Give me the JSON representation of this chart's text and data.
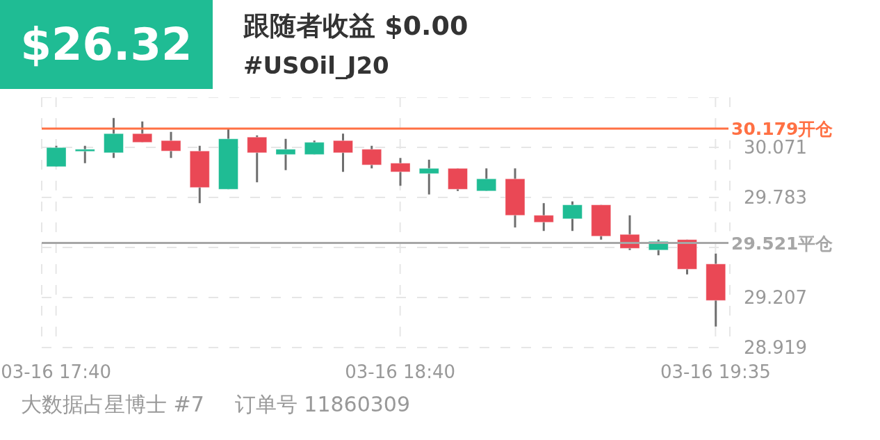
{
  "chart_data": {
    "type": "candlestick",
    "title": "跟随者收益 $0.00",
    "subtitle": "#USOil_J20",
    "annotations": [
      "$26.32",
      "大数据占星博士 #7",
      "订单号 11860309"
    ],
    "categories": [
      "03-16 17:40",
      null,
      null,
      null,
      null,
      null,
      null,
      null,
      null,
      null,
      null,
      null,
      "03-16 18:40",
      null,
      null,
      null,
      null,
      null,
      null,
      null,
      null,
      null,
      null,
      "03-16 19:35"
    ],
    "ohlc": [
      [
        29.96,
        30.08,
        29.96,
        30.07
      ],
      [
        30.05,
        30.08,
        29.98,
        30.06
      ],
      [
        30.04,
        30.24,
        30.01,
        30.15
      ],
      [
        30.15,
        30.22,
        30.1,
        30.1
      ],
      [
        30.11,
        30.16,
        30.01,
        30.05
      ],
      [
        30.05,
        30.08,
        29.75,
        29.84
      ],
      [
        29.83,
        30.18,
        29.83,
        30.12
      ],
      [
        30.13,
        30.14,
        29.87,
        30.04
      ],
      [
        30.03,
        30.12,
        29.94,
        30.06
      ],
      [
        30.03,
        30.11,
        30.03,
        30.1
      ],
      [
        30.11,
        30.15,
        29.93,
        30.04
      ],
      [
        30.06,
        30.08,
        29.95,
        29.97
      ],
      [
        29.98,
        30.01,
        29.85,
        29.93
      ],
      [
        29.92,
        30.0,
        29.8,
        29.95
      ],
      [
        29.95,
        29.95,
        29.82,
        29.83
      ],
      [
        29.82,
        29.95,
        29.82,
        29.89
      ],
      [
        29.89,
        29.95,
        29.61,
        29.68
      ],
      [
        29.68,
        29.75,
        29.59,
        29.64
      ],
      [
        29.66,
        29.76,
        29.59,
        29.74
      ],
      [
        29.74,
        29.74,
        29.54,
        29.56
      ],
      [
        29.57,
        29.68,
        29.48,
        29.49
      ],
      [
        29.48,
        29.54,
        29.45,
        29.53
      ],
      [
        29.54,
        29.54,
        29.34,
        29.37
      ],
      [
        29.4,
        29.46,
        29.04,
        29.19
      ]
    ],
    "colors": [
      "#1fbc94",
      "#1fbc94",
      "#1fbc94",
      "#ea4855",
      "#ea4855",
      "#ea4855",
      "#1fbc94",
      "#ea4855",
      "#1fbc94",
      "#1fbc94",
      "#ea4855",
      "#ea4855",
      "#ea4855",
      "#1fbc94",
      "#ea4855",
      "#1fbc94",
      "#ea4855",
      "#ea4855",
      "#1fbc94",
      "#ea4855",
      "#ea4855",
      "#1fbc94",
      "#ea4855",
      "#ea4855"
    ],
    "ylim": [
      28.919,
      30.359
    ],
    "yticks": [
      28.919,
      29.207,
      {
        "value": 29.495,
        "label": null
      },
      29.783,
      30.071,
      {
        "value": 30.359,
        "label": null
      }
    ],
    "ref_lines": [
      {
        "axis": "y",
        "value": 30.179,
        "label": "30.179开仓",
        "color": "#ff7043"
      },
      {
        "axis": "y",
        "value": 29.521,
        "label": "29.521平仓",
        "color": "#a6a6a6"
      }
    ],
    "grid": true
  }
}
